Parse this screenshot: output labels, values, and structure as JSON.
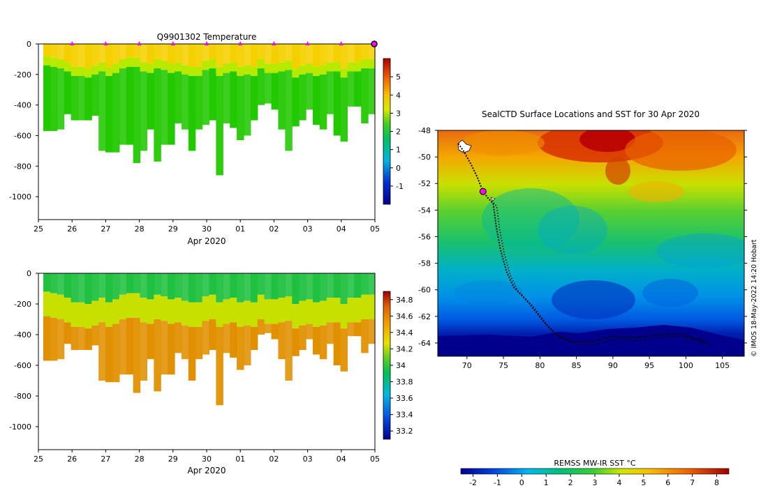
{
  "chart_data": [
    {
      "type": "heatmap",
      "title": "Q9901302  Temperature",
      "xlabel": "Apr 2020",
      "x_ticks": [
        "25",
        "26",
        "27",
        "28",
        "29",
        "30",
        "01",
        "02",
        "03",
        "04",
        "05"
      ],
      "y_ticks": [
        "0",
        "-200",
        "-400",
        "-600",
        "-800",
        "-1000"
      ],
      "ylim": [
        -1150,
        0
      ],
      "colorbar": {
        "ticks": [
          "5",
          "4",
          "3",
          "2",
          "1",
          "0",
          "-1"
        ],
        "min": -2,
        "max": 6
      },
      "profile_markers_days": [
        26,
        27,
        28,
        29,
        30,
        31,
        32,
        33,
        34
      ],
      "current_position_day": 35,
      "profile_depths_m": [
        570,
        570,
        560,
        460,
        500,
        500,
        500,
        470,
        700,
        710,
        710,
        660,
        660,
        780,
        700,
        560,
        770,
        660,
        660,
        520,
        560,
        700,
        560,
        530,
        500,
        860,
        520,
        550,
        630,
        600,
        500,
        400,
        390,
        430,
        560,
        700,
        540,
        500,
        430,
        530,
        560,
        460,
        600,
        640,
        410,
        410,
        520,
        460
      ],
      "mixed_layer_depths_m": [
        80,
        90,
        100,
        120,
        150,
        150,
        160,
        140,
        120,
        150,
        130,
        100,
        90,
        90,
        120,
        130,
        100,
        110,
        130,
        120,
        140,
        150,
        150,
        110,
        100,
        150,
        130,
        120,
        150,
        140,
        150,
        100,
        130,
        130,
        120,
        110,
        160,
        140,
        130,
        150,
        140,
        120,
        120,
        160,
        120,
        120,
        100,
        100
      ],
      "colors": {
        "warm": "#f5d000",
        "mid": "#b8ea00",
        "cool": "#22c800"
      }
    },
    {
      "type": "heatmap",
      "title": "",
      "xlabel": "Apr 2020",
      "x_ticks": [
        "25",
        "26",
        "27",
        "28",
        "29",
        "30",
        "01",
        "02",
        "03",
        "04",
        "05"
      ],
      "y_ticks": [
        "0",
        "-200",
        "-400",
        "-600",
        "-800",
        "-1000"
      ],
      "ylim": [
        -1150,
        0
      ],
      "colorbar": {
        "ticks": [
          "34.8",
          "34.6",
          "34.4",
          "34.2",
          "34",
          "33.8",
          "33.6",
          "33.4",
          "33.2"
        ],
        "min": 33.1,
        "max": 34.9
      },
      "colors": {
        "surface": "#20c040",
        "halocline": "#c8e000",
        "deep": "#e09000"
      }
    },
    {
      "type": "heatmap",
      "title": "SealCTD Surface Locations and SST for 30 Apr 2020",
      "x_ticks": [
        "70",
        "75",
        "80",
        "85",
        "90",
        "95",
        "100",
        "105"
      ],
      "y_ticks": [
        "-48",
        "-50",
        "-52",
        "-54",
        "-56",
        "-58",
        "-60",
        "-62",
        "-64"
      ],
      "xlim": [
        66,
        108
      ],
      "ylim": [
        -65,
        -48
      ],
      "track": [
        [
          68.8,
          -49.0
        ],
        [
          69.6,
          -49.6
        ],
        [
          70.6,
          -50.6
        ],
        [
          71.4,
          -51.5
        ],
        [
          72.2,
          -52.6
        ],
        [
          72.9,
          -53.1
        ],
        [
          73.6,
          -53.5
        ],
        [
          74.0,
          -55.2
        ],
        [
          74.6,
          -57.0
        ],
        [
          75.4,
          -58.6
        ],
        [
          76.4,
          -59.8
        ],
        [
          78.5,
          -61.0
        ],
        [
          80.5,
          -62.4
        ],
        [
          82.0,
          -63.3
        ],
        [
          84.5,
          -63.9
        ],
        [
          87.0,
          -63.9
        ],
        [
          90.0,
          -63.5
        ],
        [
          93.0,
          -63.6
        ],
        [
          96.0,
          -63.4
        ],
        [
          99.0,
          -63.3
        ],
        [
          101.5,
          -63.7
        ],
        [
          103.2,
          -64.0
        ]
      ],
      "current_position": [
        72.2,
        -52.6
      ],
      "colorbar": {
        "title": "REMSS MW-IR SST °C",
        "ticks": [
          "-2",
          "-1",
          "0",
          "1",
          "2",
          "3",
          "4",
          "5",
          "6",
          "7",
          "8"
        ],
        "min": -2.5,
        "max": 8.5
      }
    }
  ],
  "credit": "© IMOS 18-May-2022 14:20 Hobart",
  "colors": {
    "marker": "#ff00ff",
    "track": "#000000"
  }
}
